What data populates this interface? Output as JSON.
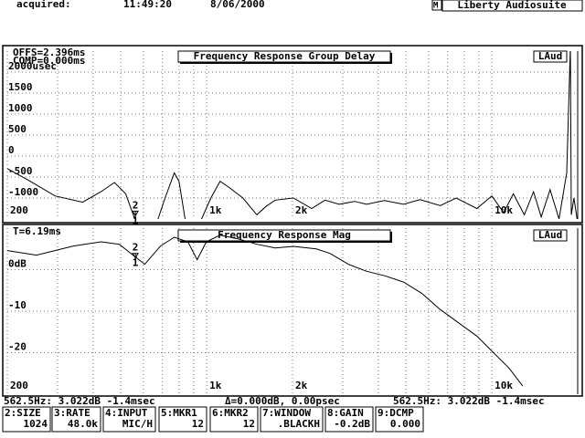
{
  "header": {
    "label": "acquired:",
    "time": "11:49:20",
    "date": "8/06/2000",
    "mode": "M",
    "app": "Liberty Audiosuite"
  },
  "chart_data": [
    {
      "type": "line",
      "title": "Frequency Response Group Delay",
      "badge": "LAud",
      "annotations": [
        "OFFS=2.396ms",
        "COMP=0.000ms"
      ],
      "log_x": true,
      "grid": true,
      "xlim": [
        200,
        20000
      ],
      "xticks": [
        200,
        {
          "value": 1000,
          "label": "1k"
        },
        {
          "value": 2000,
          "label": "2k"
        },
        {
          "value": 10000,
          "label": "10k"
        }
      ],
      "xminor": [
        300,
        400,
        500,
        600,
        700,
        800,
        900,
        3000,
        4000,
        5000,
        6000,
        7000,
        8000,
        9000
      ],
      "ylim": [
        -1500,
        2500
      ],
      "yticks": [
        {
          "value": 2000,
          "label": "2000usec"
        },
        1500,
        1000,
        500,
        0,
        -500,
        -1000
      ],
      "x": [
        200,
        235,
        294,
        367,
        426,
        475,
        520,
        560,
        600,
        660,
        715,
        770,
        800,
        840,
        870,
        960,
        1035,
        1115,
        1200,
        1340,
        1500,
        1615,
        1740,
        2015,
        2335,
        2600,
        2915,
        3300,
        3640,
        4200,
        4900,
        5600,
        6590,
        7500,
        8860,
        10000,
        11000,
        11900,
        13000,
        14000,
        14900,
        16000,
        17200,
        18300,
        18850,
        19000,
        19400,
        20000
      ],
      "series": [
        {
          "color": "#000000",
          "values": [
            -300,
            -560,
            -950,
            -1100,
            -850,
            -630,
            -900,
            -1500,
            -1700,
            -1700,
            -1000,
            -400,
            -600,
            -1500,
            -1700,
            -1500,
            -1000,
            -600,
            -750,
            -1000,
            -1400,
            -1200,
            -1050,
            -1000,
            -1250,
            -1050,
            -1150,
            -1080,
            -1150,
            -1060,
            -1150,
            -1040,
            -1180,
            -1000,
            -1250,
            -950,
            -1350,
            -900,
            -1400,
            -850,
            -1450,
            -800,
            -1500,
            -400,
            2600,
            -1400,
            -1000,
            -1600
          ]
        }
      ],
      "marker": {
        "x": 562.5,
        "y": -1400,
        "labels": [
          "2",
          "1"
        ]
      }
    },
    {
      "type": "line",
      "title": "Frequency Response Mag",
      "badge": "LAud",
      "annotations": [
        "T=6.19ms"
      ],
      "log_x": true,
      "grid": true,
      "xlim": [
        200,
        20000
      ],
      "xticks": [
        200,
        {
          "value": 1000,
          "label": "1k"
        },
        {
          "value": 2000,
          "label": "2k"
        },
        {
          "value": 10000,
          "label": "10k"
        }
      ],
      "xminor": [
        300,
        400,
        500,
        600,
        700,
        800,
        900,
        3000,
        4000,
        5000,
        6000,
        7000,
        8000,
        9000
      ],
      "ylim": [
        -30,
        10
      ],
      "yticks": [
        {
          "value": 0,
          "label": "0dB"
        },
        -10,
        -20
      ],
      "x": [
        200,
        253,
        341,
        426,
        494,
        564,
        607,
        689,
        770,
        860,
        926,
        997,
        1115,
        1290,
        1500,
        1740,
        2015,
        2425,
        2710,
        3140,
        3640,
        4225,
        4900,
        5680,
        6590,
        7640,
        8860,
        10270,
        11480,
        12830
      ],
      "series": [
        {
          "color": "#000000",
          "values": [
            4.6,
            3.5,
            5.7,
            6.7,
            6.1,
            3.0,
            1.3,
            5.7,
            7.8,
            6.7,
            2.4,
            6.7,
            8.3,
            7.4,
            6.1,
            5.2,
            5.6,
            5.0,
            3.9,
            1.3,
            -0.4,
            -1.5,
            -3.0,
            -5.7,
            -9.6,
            -12.8,
            -16.0,
            -20.4,
            -23.7,
            -28.0
          ]
        }
      ],
      "marker": {
        "x": 562.5,
        "y": 3.022,
        "labels": [
          "2",
          "1"
        ]
      }
    }
  ],
  "status": {
    "left": "562.5Hz: 3.022dB  -1.4msec",
    "delta": "Δ=0.000dB, 0.00psec",
    "right": "562.5Hz: 3.022dB -1.4msec"
  },
  "buttons": [
    [
      "2:SIZE",
      "1024"
    ],
    [
      "3:RATE",
      "48.0k"
    ],
    [
      "4:INPUT",
      "MIC/H"
    ],
    [
      "5:MKR1",
      "12"
    ],
    [
      "6:MKR2",
      "12"
    ],
    [
      "7:WINDOW",
      ".BLACKH"
    ],
    [
      "8:GAIN",
      "-0.2dB"
    ],
    [
      "9:DCMP",
      "0.000"
    ]
  ]
}
